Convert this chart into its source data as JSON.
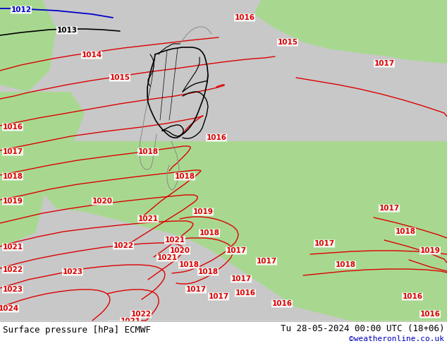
{
  "title_left": "Surface pressure [hPa] ECMWF",
  "title_right": "Tu 28-05-2024 00:00 UTC (18+06)",
  "credit": "©weatheronline.co.uk",
  "bg_color": "#c8c8c8",
  "sea_color": "#c8c8c8",
  "land_green": "#a8d890",
  "land_gray": "#c0c0c0",
  "border_black": "#000000",
  "border_gray": "#888888",
  "isobar_red": "#dd0000",
  "isobar_blue": "#0000cc",
  "isobar_black": "#000000",
  "bottom_bar": "#ffffff",
  "credit_color": "#0000bb",
  "lw_isobar": 1.0,
  "lw_border": 0.8,
  "label_fs": 7.5,
  "title_fs": 9,
  "credit_fs": 8
}
